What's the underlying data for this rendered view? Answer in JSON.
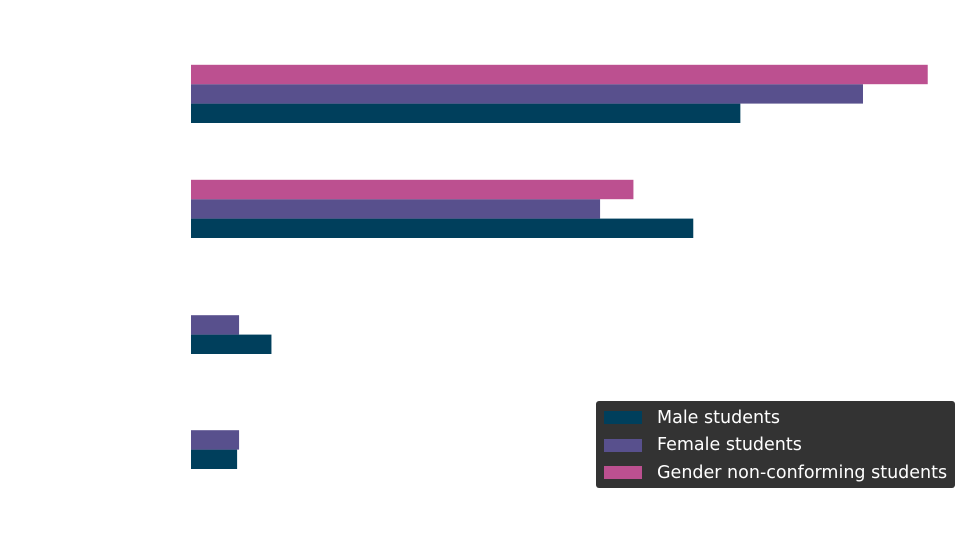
{
  "chart_data": {
    "type": "bar",
    "orientation": "horizontal",
    "categories": [
      "",
      "",
      "",
      ""
    ],
    "series": [
      {
        "name": "Male students",
        "color": "#003f5c",
        "values": [
          56.0,
          51.2,
          8.2,
          4.7
        ]
      },
      {
        "name": "Female students",
        "color": "#58508d",
        "values": [
          68.5,
          41.7,
          4.9,
          4.9
        ]
      },
      {
        "name": "Gender non-conforming students",
        "color": "#bc5090",
        "values": [
          75.1,
          45.1,
          0,
          0
        ]
      }
    ],
    "title": "",
    "xlabel": "",
    "ylabel": "",
    "xlim": [
      0,
      80
    ],
    "grid": false,
    "legend_position": "bottom-right"
  }
}
